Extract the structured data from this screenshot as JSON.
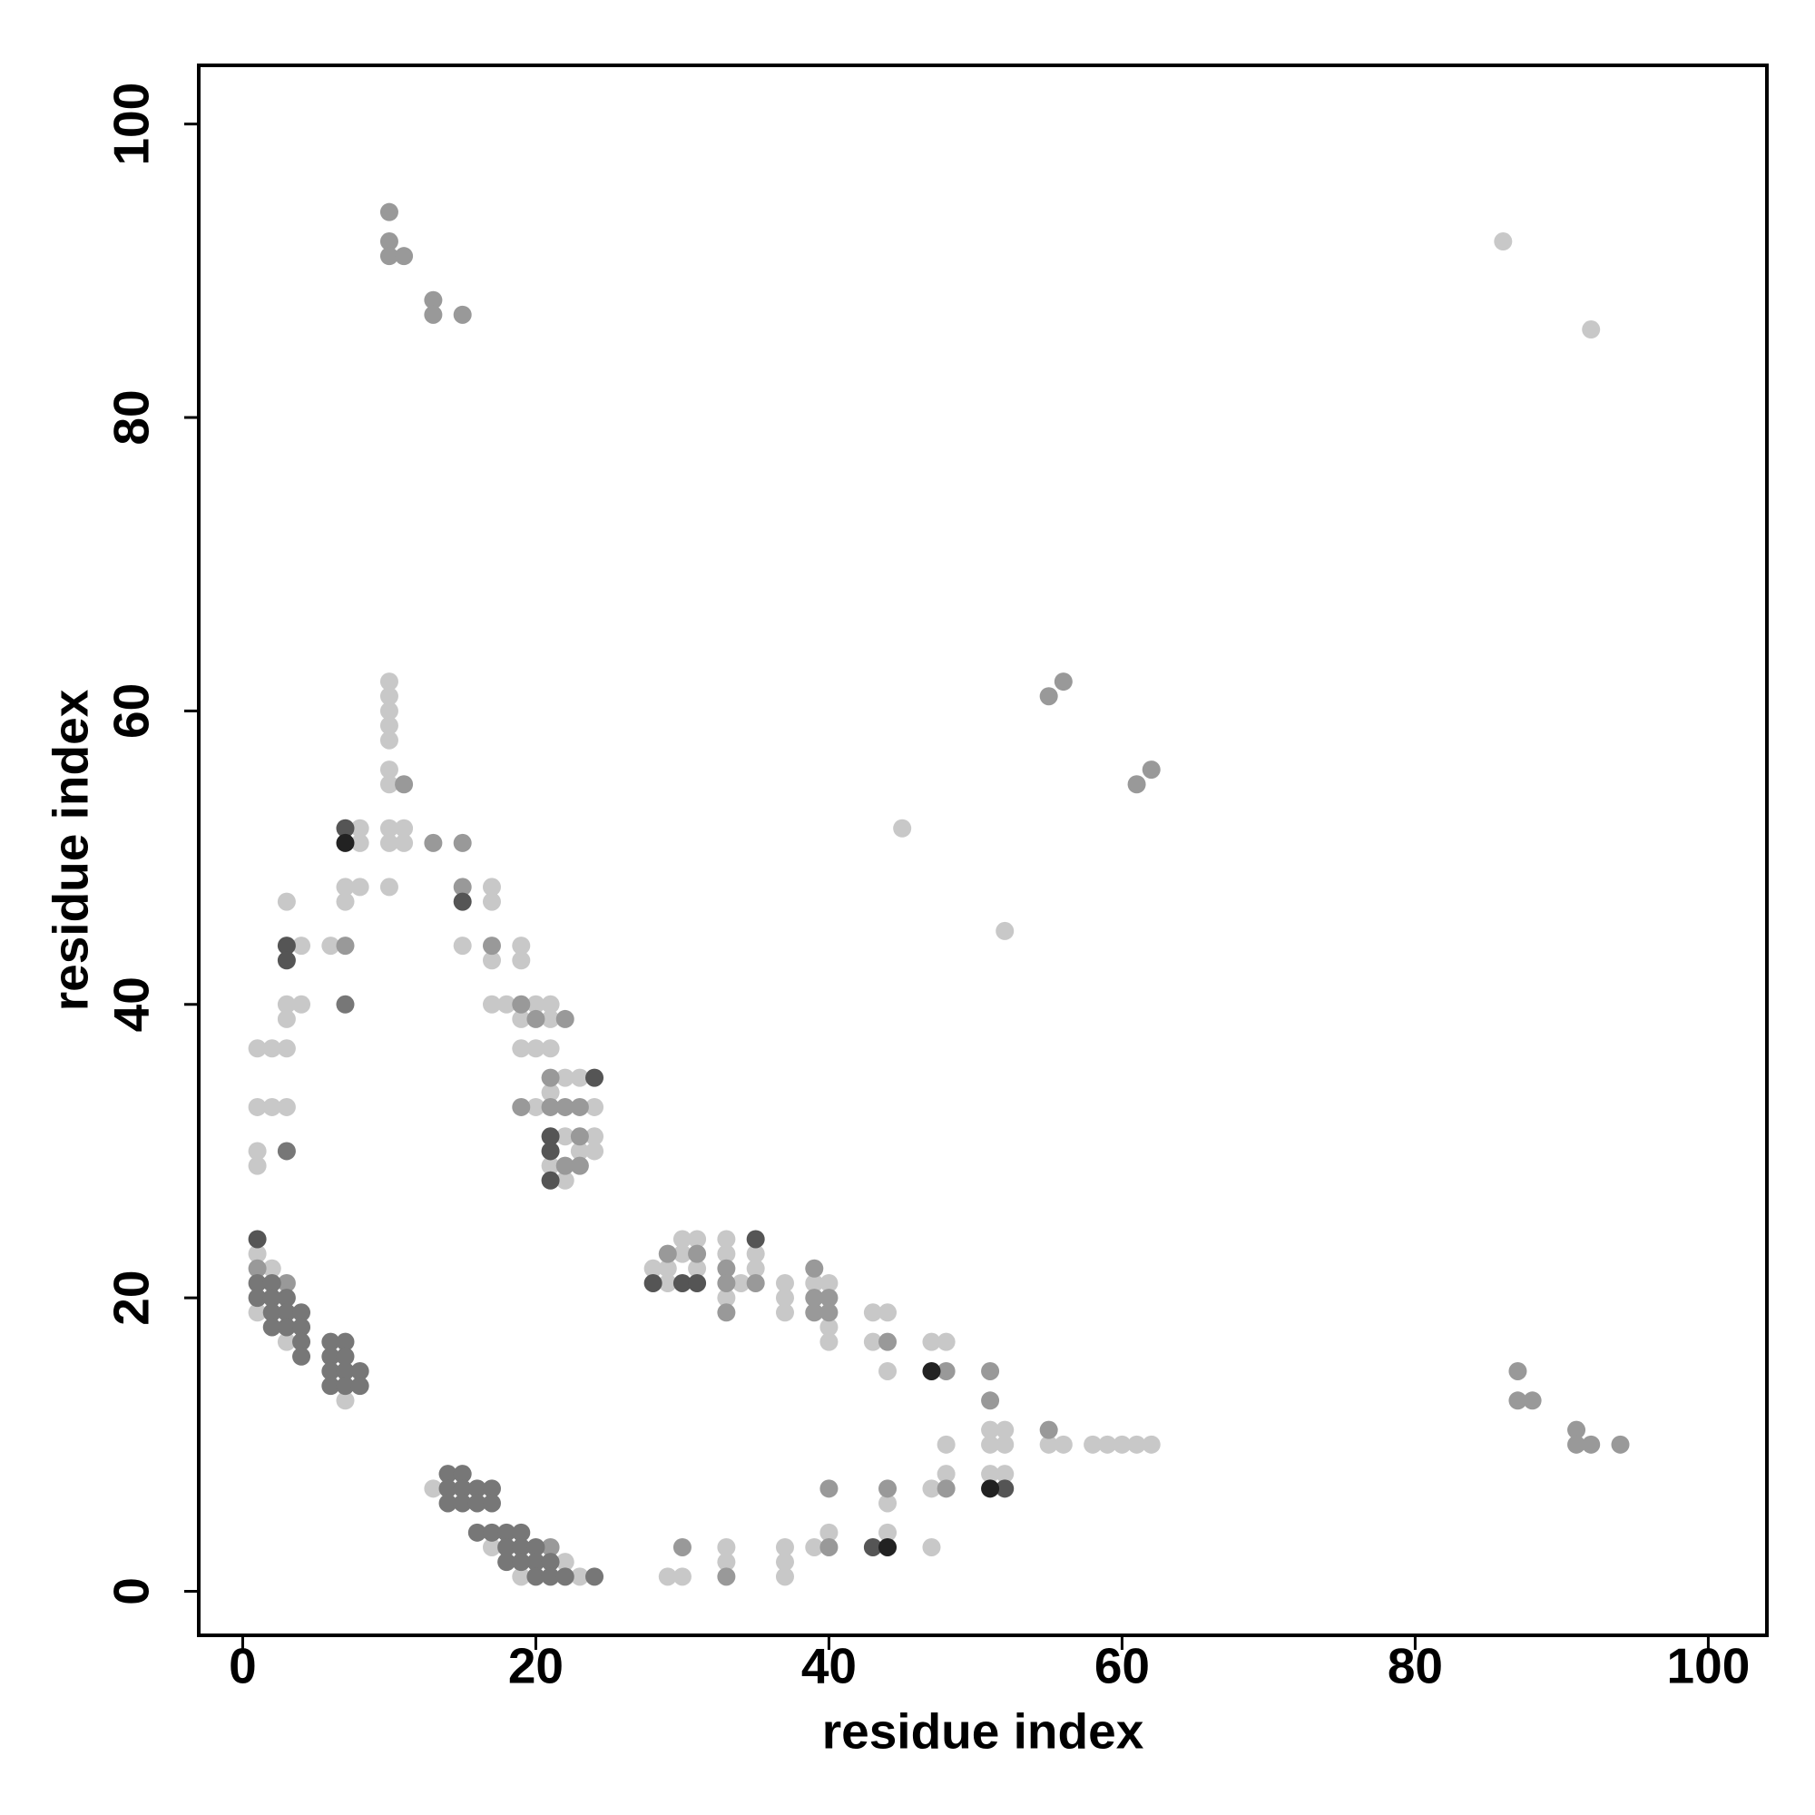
{
  "chart_data": {
    "type": "scatter",
    "x_label": "residue index",
    "y_label": "residue index",
    "xlim": [
      -3,
      104
    ],
    "ylim": [
      -3,
      104
    ],
    "xticks": [
      0,
      20,
      40,
      60,
      80,
      100
    ],
    "yticks": [
      0,
      20,
      40,
      60,
      80,
      100
    ],
    "series": [
      {
        "color": "#c8c8c8",
        "x": [
          86,
          92,
          45,
          52,
          10,
          10,
          10,
          10,
          10,
          10,
          10,
          10,
          10,
          10,
          11,
          11,
          7,
          7,
          8,
          8,
          8,
          6,
          15,
          17,
          17,
          17,
          19,
          19,
          3,
          3,
          3,
          3,
          3,
          4,
          4,
          1,
          2,
          1,
          2,
          1,
          1,
          17,
          18,
          20,
          21,
          19,
          21,
          19,
          20,
          21,
          20,
          24,
          22,
          23,
          21,
          22,
          24,
          23,
          24,
          21,
          22,
          1,
          2,
          1,
          3,
          7,
          13,
          17,
          22,
          19,
          23,
          28,
          29,
          30,
          31,
          30,
          29,
          31,
          33,
          33,
          33,
          34,
          35,
          35,
          37,
          37,
          37,
          39,
          40,
          40,
          40,
          43,
          44,
          43,
          44,
          47,
          48,
          51,
          52,
          51,
          52,
          48,
          51,
          52,
          48,
          47,
          55,
          56,
          58,
          59,
          60,
          61,
          62,
          44,
          40,
          44,
          39,
          47,
          33,
          33,
          37,
          37,
          37,
          29,
          30
        ],
        "values": [
          92,
          86,
          52,
          45,
          62,
          61,
          60,
          59,
          58,
          56,
          55,
          52,
          51,
          48,
          52,
          51,
          48,
          47,
          52,
          51,
          48,
          44,
          44,
          48,
          47,
          43,
          44,
          43,
          47,
          40,
          39,
          37,
          33,
          44,
          40,
          37,
          37,
          33,
          33,
          30,
          29,
          40,
          40,
          40,
          40,
          39,
          39,
          37,
          37,
          37,
          33,
          33,
          35,
          35,
          34,
          31,
          31,
          30,
          30,
          29,
          28,
          23,
          22,
          19,
          17,
          13,
          7,
          3,
          2,
          1,
          1,
          22,
          22,
          24,
          24,
          23,
          21,
          22,
          24,
          23,
          20,
          21,
          23,
          22,
          21,
          20,
          19,
          21,
          21,
          18,
          17,
          19,
          19,
          17,
          15,
          17,
          17,
          11,
          11,
          10,
          10,
          10,
          8,
          8,
          8,
          7,
          10,
          10,
          10,
          10,
          10,
          10,
          10,
          6,
          4,
          4,
          3,
          3,
          3,
          2,
          3,
          2,
          1,
          1,
          1
        ]
      },
      {
        "color": "#999999",
        "x": [
          10,
          10,
          10,
          11,
          13,
          13,
          15,
          55,
          56,
          61,
          62,
          11,
          13,
          15,
          7,
          15,
          17,
          19,
          20,
          22,
          19,
          21,
          22,
          23,
          21,
          23,
          22,
          23,
          1,
          3,
          21,
          29,
          31,
          33,
          33,
          33,
          35,
          39,
          39,
          39,
          40,
          40,
          44,
          48,
          51,
          51,
          48,
          55,
          40,
          44,
          40,
          30,
          33,
          87,
          87,
          88,
          91,
          91,
          92,
          94
        ],
        "values": [
          94,
          92,
          91,
          91,
          88,
          87,
          87,
          61,
          62,
          55,
          56,
          55,
          51,
          51,
          44,
          48,
          44,
          40,
          39,
          39,
          33,
          33,
          33,
          33,
          35,
          31,
          29,
          29,
          22,
          21,
          3,
          23,
          23,
          22,
          21,
          19,
          21,
          22,
          20,
          19,
          20,
          19,
          17,
          15,
          15,
          13,
          7,
          11,
          7,
          7,
          3,
          3,
          1,
          15,
          13,
          13,
          11,
          10,
          10,
          10
        ]
      },
      {
        "color": "#777777",
        "x": [
          7,
          3,
          1,
          2,
          1,
          2,
          3,
          2,
          3,
          4,
          2,
          3,
          4,
          4,
          4,
          6,
          7,
          6,
          7,
          6,
          7,
          8,
          6,
          7,
          8,
          14,
          15,
          14,
          15,
          16,
          17,
          14,
          15,
          16,
          17,
          16,
          17,
          18,
          19,
          18,
          19,
          20,
          18,
          19,
          20,
          21,
          20,
          21,
          22,
          24
        ],
        "values": [
          40,
          30,
          21,
          21,
          20,
          20,
          20,
          19,
          19,
          19,
          18,
          18,
          18,
          17,
          16,
          17,
          17,
          16,
          16,
          15,
          15,
          15,
          14,
          14,
          14,
          8,
          8,
          7,
          7,
          7,
          7,
          6,
          6,
          6,
          6,
          4,
          4,
          4,
          4,
          3,
          3,
          3,
          2,
          2,
          2,
          2,
          1,
          1,
          1,
          1
        ]
      },
      {
        "color": "#555555",
        "x": [
          7,
          3,
          3,
          15,
          24,
          21,
          21,
          21,
          1,
          28,
          30,
          31,
          35,
          52,
          43
        ],
        "values": [
          52,
          44,
          43,
          47,
          35,
          31,
          30,
          28,
          24,
          21,
          21,
          21,
          24,
          7,
          3
        ]
      },
      {
        "color": "#222222",
        "x": [
          7,
          47,
          51,
          44
        ],
        "values": [
          51,
          15,
          7,
          3
        ]
      }
    ]
  }
}
